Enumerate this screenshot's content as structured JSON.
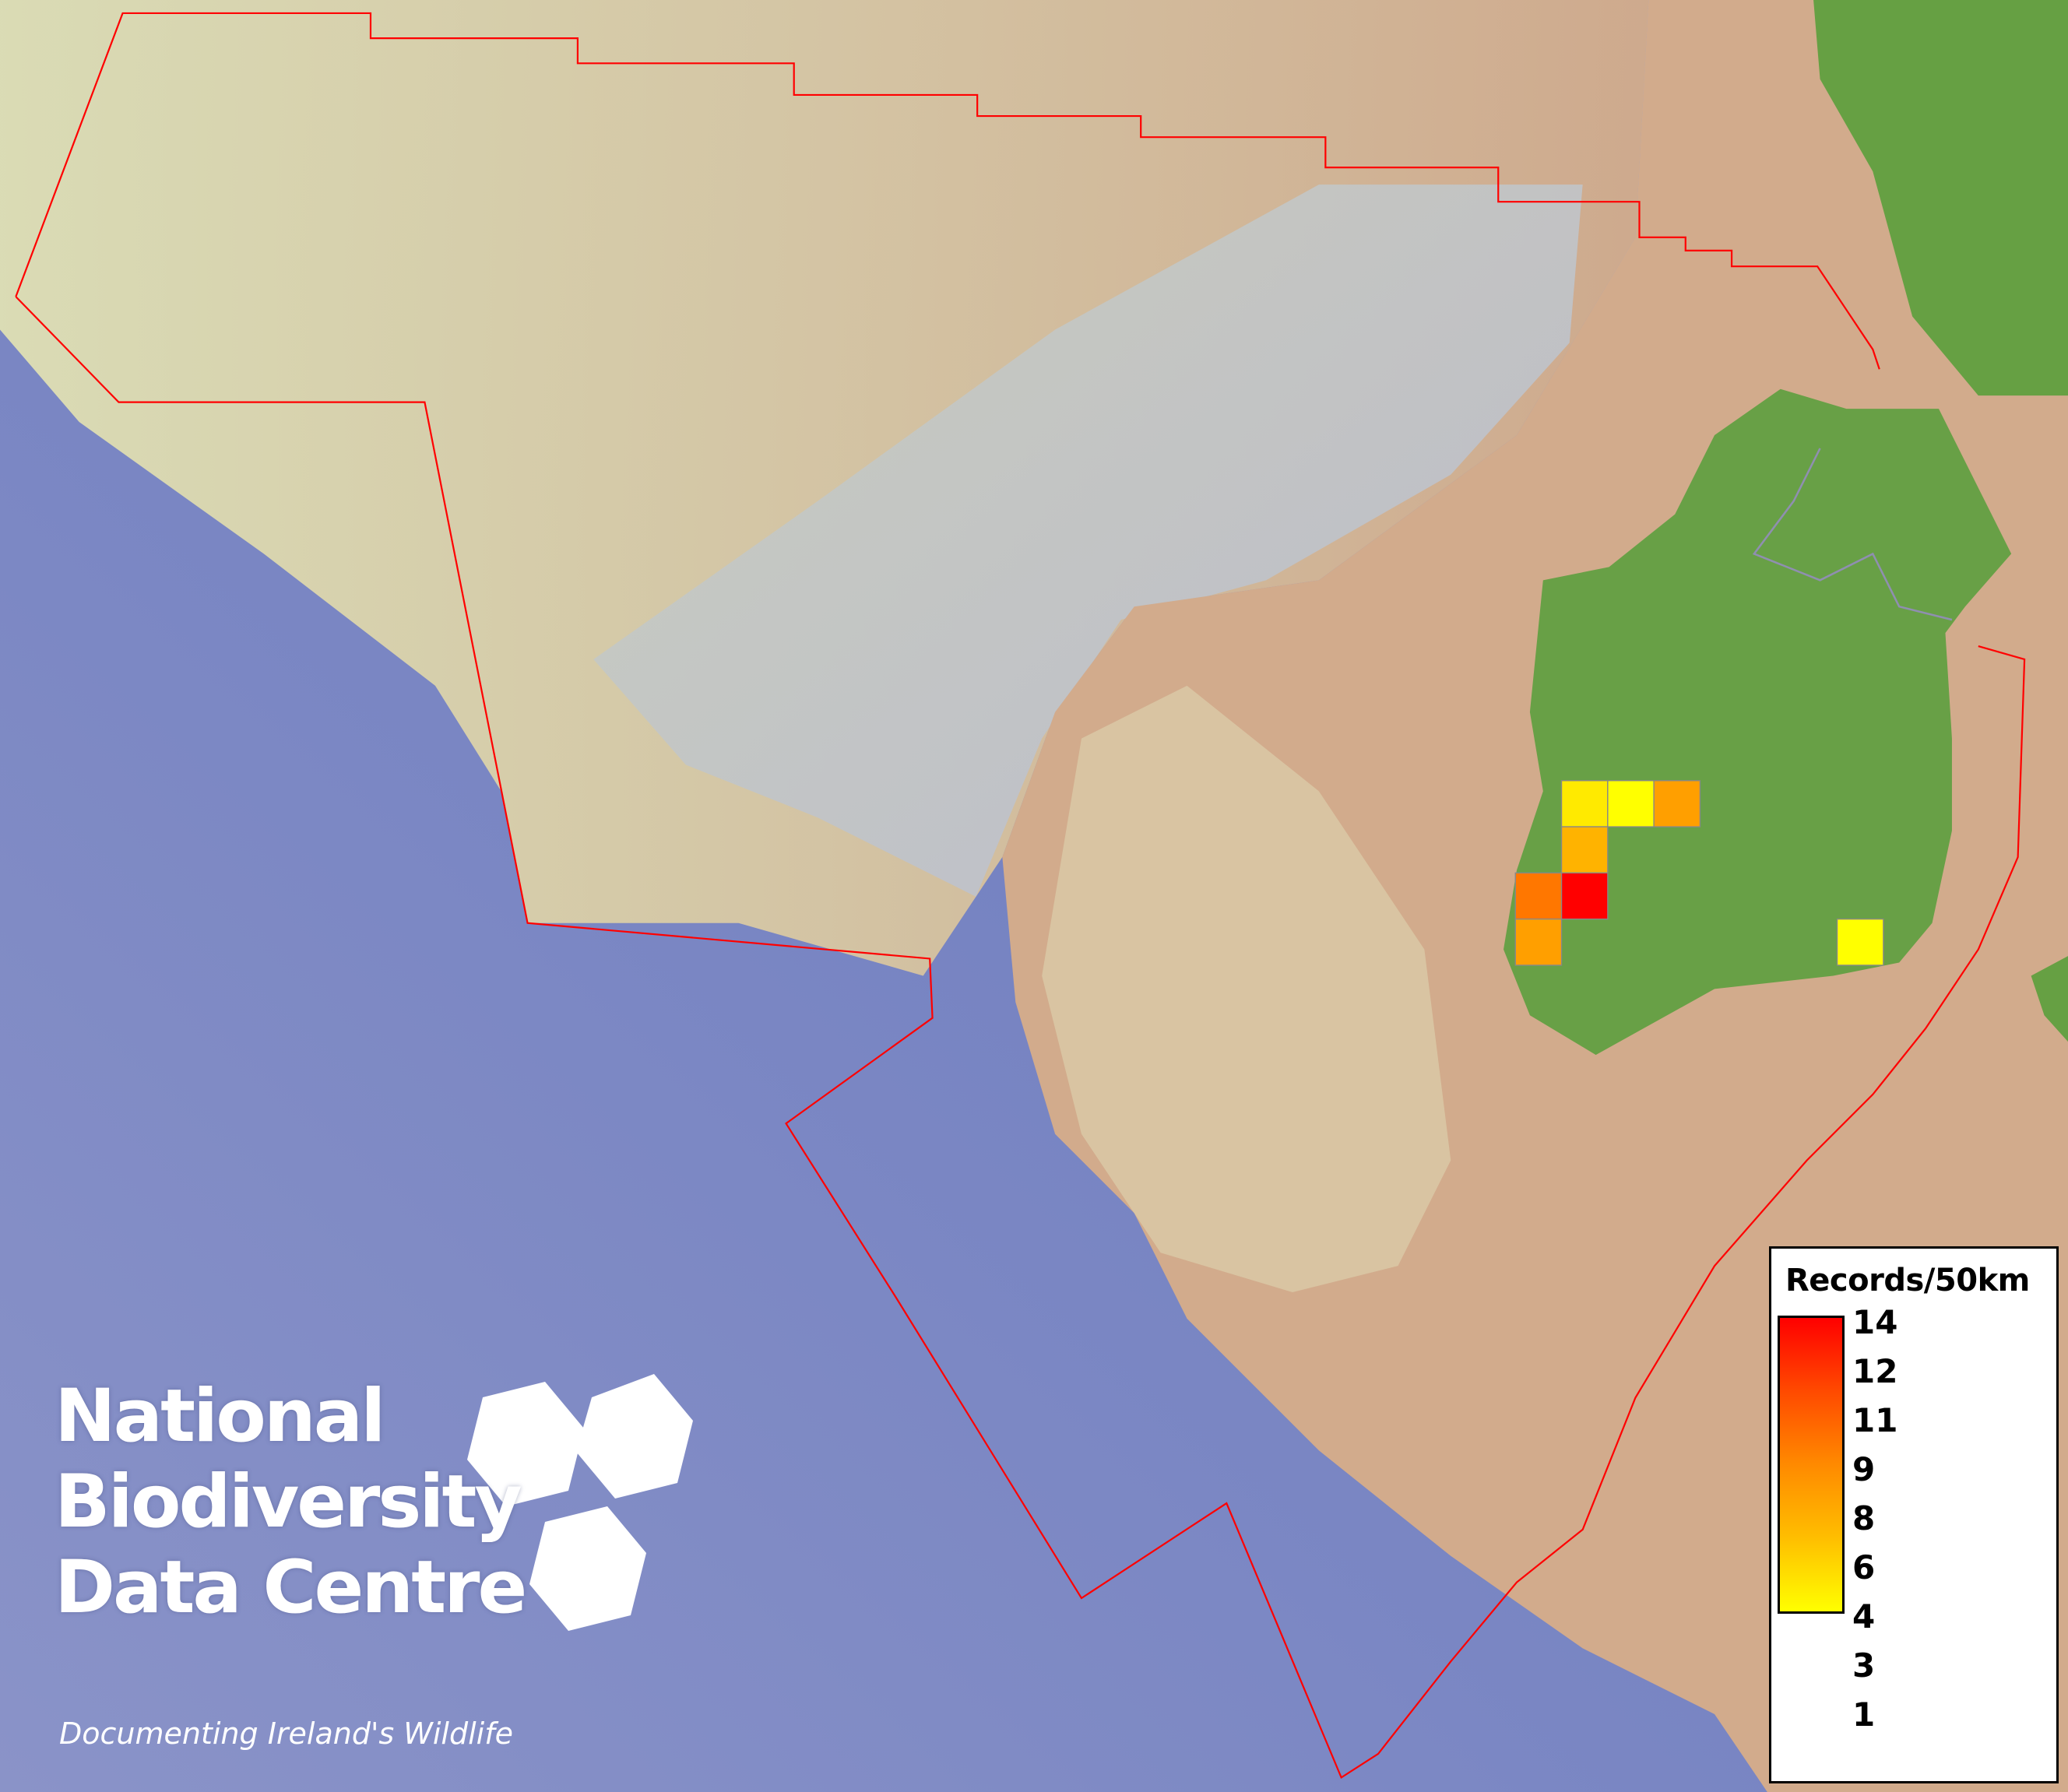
{
  "legend": {
    "title": "Records/50km",
    "ticks": [
      "14",
      "12",
      "11",
      "9",
      "8",
      "6",
      "4",
      "3",
      "1"
    ],
    "color_low": "#ffff00",
    "color_high": "#ff0000"
  },
  "grid_cells": [
    {
      "value": 2,
      "color": "#ffea00"
    },
    {
      "value": 1,
      "color": "#ffff00"
    },
    {
      "value": 5,
      "color": "#ff9f00"
    },
    {
      "value": 4,
      "color": "#ffb300"
    },
    {
      "value": 8,
      "color": "#ff7700"
    },
    {
      "value": 14,
      "color": "#ff0000"
    },
    {
      "value": 5,
      "color": "#ff9f00"
    },
    {
      "value": 1,
      "color": "#ffff00"
    }
  ],
  "boundary_color": "#ff0000",
  "logo": {
    "line1": "National",
    "line2": "Biodiversity",
    "line3": "Data Centre",
    "tagline": "Documenting Ireland's Wildlife"
  }
}
